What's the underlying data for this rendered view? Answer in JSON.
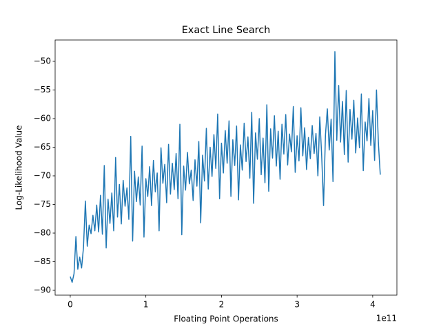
{
  "chart_data": {
    "type": "line",
    "title": "Exact Line Search",
    "x_label": "Floating Point Operations",
    "y_label": "Log-Likelihood Value",
    "x_offset": "1e11",
    "xlim": [
      -0.2,
      4.32
    ],
    "xticks": [
      0,
      1,
      2,
      3,
      4
    ],
    "ylim": [
      -90.84,
      -46.27
    ],
    "yticks": [
      {
        "value": -90,
        "label": "−90"
      },
      {
        "value": -85,
        "label": "−85"
      },
      {
        "value": -80,
        "label": "−80"
      },
      {
        "value": -75,
        "label": "−75"
      },
      {
        "value": -70,
        "label": "−70"
      },
      {
        "value": -65,
        "label": "−65"
      },
      {
        "value": -60,
        "label": "−60"
      },
      {
        "value": -55,
        "label": "−55"
      },
      {
        "value": -50,
        "label": "−50"
      }
    ],
    "grid": false,
    "x": [
      0,
      0.025,
      0.05,
      0.075,
      0.1,
      0.125,
      0.15,
      0.175,
      0.2,
      0.225,
      0.25,
      0.275,
      0.3,
      0.325,
      0.35,
      0.375,
      0.4,
      0.425,
      0.45,
      0.475,
      0.5,
      0.525,
      0.55,
      0.575,
      0.6,
      0.625,
      0.65,
      0.675,
      0.7,
      0.725,
      0.75,
      0.775,
      0.8,
      0.825,
      0.85,
      0.875,
      0.9,
      0.925,
      0.95,
      0.975,
      1.0,
      1.025,
      1.05,
      1.075,
      1.1,
      1.125,
      1.15,
      1.175,
      1.2,
      1.225,
      1.25,
      1.275,
      1.3,
      1.325,
      1.35,
      1.375,
      1.4,
      1.425,
      1.45,
      1.475,
      1.5,
      1.525,
      1.55,
      1.575,
      1.6,
      1.625,
      1.65,
      1.675,
      1.7,
      1.725,
      1.75,
      1.775,
      1.8,
      1.825,
      1.85,
      1.875,
      1.9,
      1.925,
      1.95,
      1.975,
      2.0,
      2.025,
      2.05,
      2.075,
      2.1,
      2.125,
      2.15,
      2.175,
      2.2,
      2.225,
      2.25,
      2.275,
      2.3,
      2.325,
      2.35,
      2.375,
      2.4,
      2.425,
      2.45,
      2.475,
      2.5,
      2.525,
      2.55,
      2.575,
      2.6,
      2.625,
      2.65,
      2.675,
      2.7,
      2.725,
      2.75,
      2.775,
      2.8,
      2.825,
      2.85,
      2.875,
      2.9,
      2.925,
      2.95,
      2.975,
      3.0,
      3.025,
      3.05,
      3.075,
      3.1,
      3.125,
      3.15,
      3.175,
      3.2,
      3.225,
      3.25,
      3.275,
      3.3,
      3.325,
      3.35,
      3.375,
      3.4,
      3.425,
      3.45,
      3.475,
      3.5,
      3.525,
      3.55,
      3.575,
      3.6,
      3.625,
      3.65,
      3.675,
      3.7,
      3.725,
      3.75,
      3.775,
      3.8,
      3.825,
      3.85,
      3.875,
      3.9,
      3.925,
      3.95,
      3.975,
      4.0,
      4.025,
      4.05,
      4.075,
      4.1
    ],
    "series": [
      {
        "color": "#1f77b4",
        "values": [
          -87.6,
          -88.6,
          -87.1,
          -80.6,
          -86.3,
          -84.2,
          -86.1,
          -82.5,
          -74.4,
          -82.3,
          -78.6,
          -80.1,
          -76.9,
          -79.6,
          -75.1,
          -79.8,
          -73.4,
          -80.2,
          -68.2,
          -82.6,
          -74.1,
          -78.3,
          -73.0,
          -79.6,
          -66.8,
          -77.2,
          -71.5,
          -78.4,
          -70.8,
          -75.3,
          -72.1,
          -77.6,
          -63.1,
          -81.4,
          -69.2,
          -74.5,
          -70.2,
          -75.1,
          -64.8,
          -80.7,
          -70.5,
          -73.6,
          -68.4,
          -75.2,
          -67.3,
          -72.8,
          -69.5,
          -79.6,
          -65.1,
          -71.3,
          -68.0,
          -74.7,
          -64.5,
          -73.2,
          -67.8,
          -72.4,
          -66.1,
          -74.0,
          -61.0,
          -80.3,
          -68.3,
          -72.5,
          -65.9,
          -71.4,
          -69.0,
          -74.3,
          -67.2,
          -71.8,
          -64.0,
          -78.2,
          -66.4,
          -70.9,
          -61.7,
          -72.3,
          -65.0,
          -70.1,
          -62.8,
          -68.7,
          -59.2,
          -74.0,
          -64.3,
          -69.5,
          -62.1,
          -67.8,
          -60.4,
          -73.6,
          -63.7,
          -68.2,
          -61.3,
          -74.2,
          -64.6,
          -69.0,
          -60.8,
          -67.5,
          -63.2,
          -70.4,
          -58.9,
          -74.8,
          -62.5,
          -67.1,
          -60.0,
          -69.8,
          -63.4,
          -71.2,
          -57.6,
          -72.7,
          -61.8,
          -66.9,
          -59.5,
          -68.3,
          -62.2,
          -70.6,
          -61.0,
          -66.2,
          -59.3,
          -68.1,
          -62.7,
          -65.8,
          -57.9,
          -69.4,
          -63.0,
          -67.4,
          -58.1,
          -66.5,
          -61.6,
          -68.9,
          -63.3,
          -67.0,
          -61.2,
          -66.1,
          -62.6,
          -70.0,
          -59.7,
          -66.4,
          -75.2,
          -62.9,
          -58.3,
          -65.5,
          -60.1,
          -71.0,
          -48.3,
          -63.8,
          -54.2,
          -64.1,
          -57.0,
          -66.3,
          -55.1,
          -67.6,
          -58.4,
          -63.6,
          -56.8,
          -66.0,
          -59.9,
          -65.1,
          -55.7,
          -69.1,
          -60.6,
          -63.9,
          -56.5,
          -64.7,
          -58.6,
          -67.3,
          -55.0,
          -64.2,
          -69.8
        ]
      }
    ]
  }
}
